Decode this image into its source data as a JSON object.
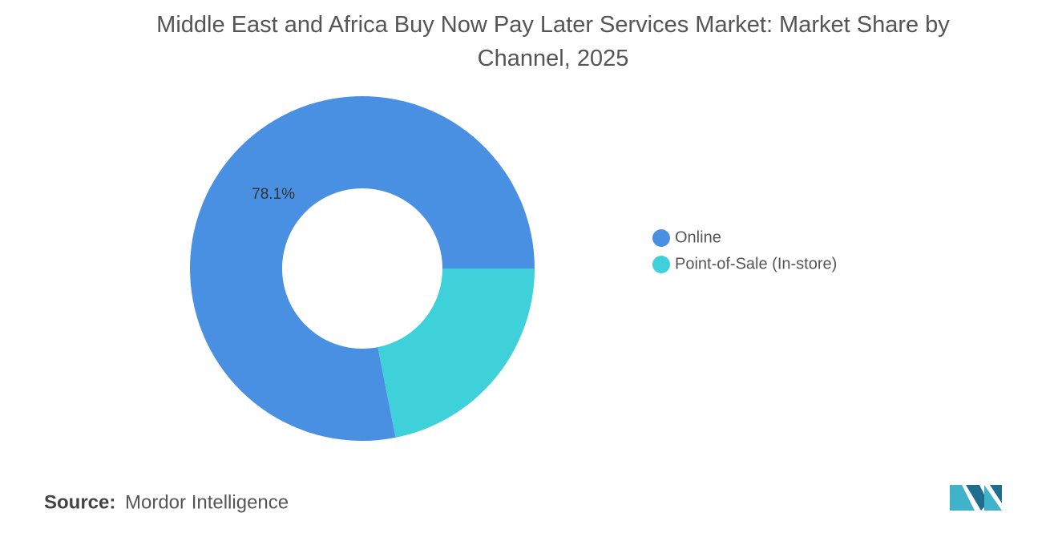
{
  "chart_data": {
    "type": "donut",
    "title": "Middle East and Africa Buy Now Pay Later Services Market: Market Share by Channel, 2025",
    "categories": [
      "Online",
      "Point-of-Sale (In-store)"
    ],
    "values": [
      78.1,
      21.9
    ],
    "value_labels": [
      "78.1%",
      null
    ],
    "colors": [
      "#4a90e2",
      "#3fd1da"
    ],
    "legend": "right",
    "source_label": "Source:",
    "source": "Mordor Intelligence"
  }
}
